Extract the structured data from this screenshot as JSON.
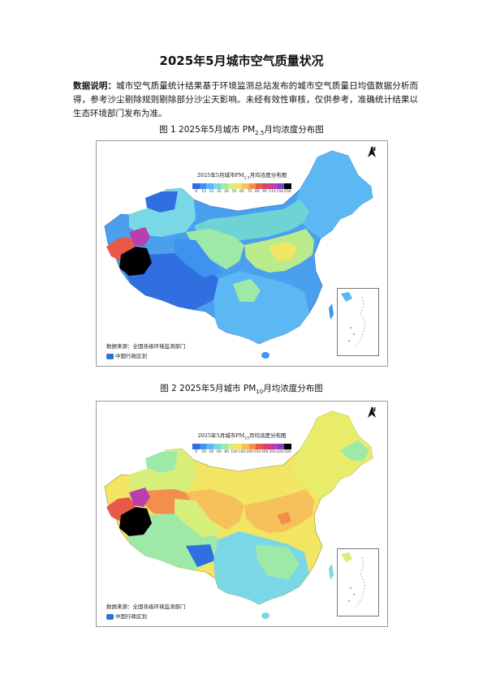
{
  "doc": {
    "title": "2025年5月城市空气质量状况",
    "note_label": "数据说明：",
    "note_text": "城市空气质量统计结果基于环境监测总站发布的城市空气质量日均值数据分析而得，参考沙尘剔除规则剔除部分沙尘天影响。未经有效性审核，仅供参考，准确统计结果以生态环境部门发布为准。"
  },
  "figures": [
    {
      "caption_prefix": "图 1  2025年5月城市 PM",
      "caption_sub": "2.5",
      "caption_suffix": "月均浓度分布图",
      "legend_title_prefix": "2025年5月城市PM",
      "legend_title_sub": "2.5",
      "legend_title_suffix": "月均浓度分布图",
      "legend_ticks": [
        "0",
        "15",
        "25",
        "35",
        "45",
        "55",
        "65",
        "75",
        "85",
        "95",
        "115",
        "150",
        "250"
      ],
      "legend_colors": [
        "#2f6fe0",
        "#3d93ef",
        "#5cb8f2",
        "#7ad7e6",
        "#9ee9a8",
        "#d5ef7a",
        "#f3e564",
        "#f6c15a",
        "#f38e4d",
        "#e8594a",
        "#d9416d",
        "#b93fae",
        "#8a3ccf",
        "#000000"
      ],
      "source_text": "数据来源：全国各级环境监测部门",
      "badge_text": "中国行政区划"
    },
    {
      "caption_prefix": "图 2  2025年5月城市 PM",
      "caption_sub": "10",
      "caption_suffix": "月均浓度分布图",
      "legend_title_prefix": "2025年5月城市PM",
      "legend_title_sub": "10",
      "legend_title_suffix": "月均浓度分布图",
      "legend_ticks": [
        "0",
        "20",
        "40",
        "60",
        "80",
        "100",
        "150",
        "200",
        "250",
        "300",
        "350",
        "420",
        "500"
      ],
      "legend_colors": [
        "#2f6fe0",
        "#3d93ef",
        "#5cb8f2",
        "#7ad7e6",
        "#9ee9a8",
        "#d5ef7a",
        "#f3e564",
        "#f6c15a",
        "#f38e4d",
        "#e8594a",
        "#d9416d",
        "#b93fae",
        "#8a3ccf",
        "#000000"
      ],
      "source_text": "数据来源：全国各级环境监测部门",
      "badge_text": "中国行政区划"
    }
  ],
  "north_label": "N"
}
